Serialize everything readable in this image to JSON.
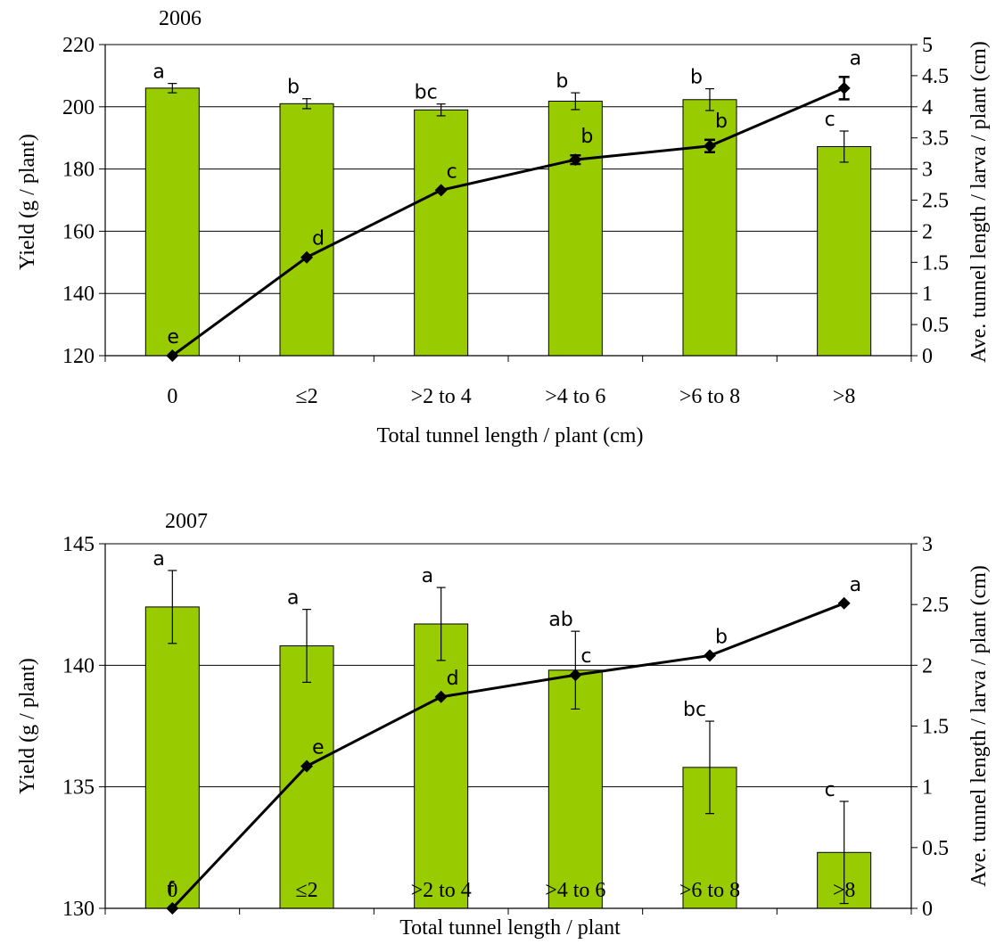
{
  "chart_data": [
    {
      "type": "bar",
      "title": "2006",
      "categories": [
        "0",
        "≤2",
        ">2 to 4",
        ">4 to 6",
        ">6 to 8",
        ">8"
      ],
      "xlabel": "Total tunnel length / plant (cm)",
      "ylabel": "Yield (g / plant)",
      "y2label": "Ave. tunnel length / larva / plant (cm)",
      "ylim": [
        120,
        220
      ],
      "yticks": [
        120,
        140,
        160,
        180,
        200,
        220
      ],
      "y2lim": [
        0,
        5
      ],
      "y2ticks": [
        "0",
        "0.5",
        "1",
        "1.5",
        "2",
        "2.5",
        "3",
        "3.5",
        "4",
        "4.5",
        "5"
      ],
      "grid": true,
      "colors": {
        "bar": "#99cc00",
        "bar_edge": "#000000",
        "line": "#000000"
      },
      "series": [
        {
          "type": "bar",
          "axis": "left",
          "values": [
            206,
            201,
            199,
            201.8,
            202.3,
            187.2
          ],
          "errors": [
            1.5,
            1.6,
            1.9,
            2.7,
            3.5,
            5.0
          ],
          "labels": [
            "a",
            "b",
            "bc",
            "b",
            "b",
            "c"
          ]
        },
        {
          "type": "line",
          "axis": "right",
          "values": [
            0.0,
            1.58,
            2.66,
            3.15,
            3.37,
            4.3
          ],
          "errors": [
            0.0,
            0.0,
            0.0,
            0.07,
            0.1,
            0.18
          ],
          "labels": [
            "e",
            "d",
            "c",
            "b",
            "b",
            "a"
          ]
        }
      ]
    },
    {
      "type": "bar",
      "title": "2007",
      "categories": [
        "0",
        "≤2",
        ">2 to 4",
        ">4 to 6",
        ">6 to 8",
        ">8"
      ],
      "xlabel": "Total tunnel length / plant",
      "ylabel": "Yield (g / plant)",
      "y2label": "Ave. tunnel length / larva / plant (cm)",
      "ylim": [
        130,
        145
      ],
      "yticks": [
        130,
        135,
        140,
        145
      ],
      "y2lim": [
        0,
        3
      ],
      "y2ticks": [
        "0",
        "0.5",
        "1",
        "1.5",
        "2",
        "2.5",
        "3"
      ],
      "grid": true,
      "colors": {
        "bar": "#99cc00",
        "bar_edge": "#000000",
        "line": "#000000"
      },
      "series": [
        {
          "type": "bar",
          "axis": "left",
          "values": [
            142.4,
            140.8,
            141.7,
            139.8,
            135.8,
            132.3
          ],
          "errors": [
            1.5,
            1.5,
            1.5,
            1.6,
            1.9,
            2.1
          ],
          "labels": [
            "a",
            "a",
            "a",
            "ab",
            "bc",
            "c"
          ]
        },
        {
          "type": "line",
          "axis": "right",
          "values": [
            0.0,
            1.17,
            1.74,
            1.92,
            2.08,
            2.51
          ],
          "errors": [
            0,
            0,
            0,
            0,
            0,
            0
          ],
          "labels": [
            "f",
            "e",
            "d",
            "c",
            "b",
            "a"
          ]
        }
      ]
    }
  ]
}
